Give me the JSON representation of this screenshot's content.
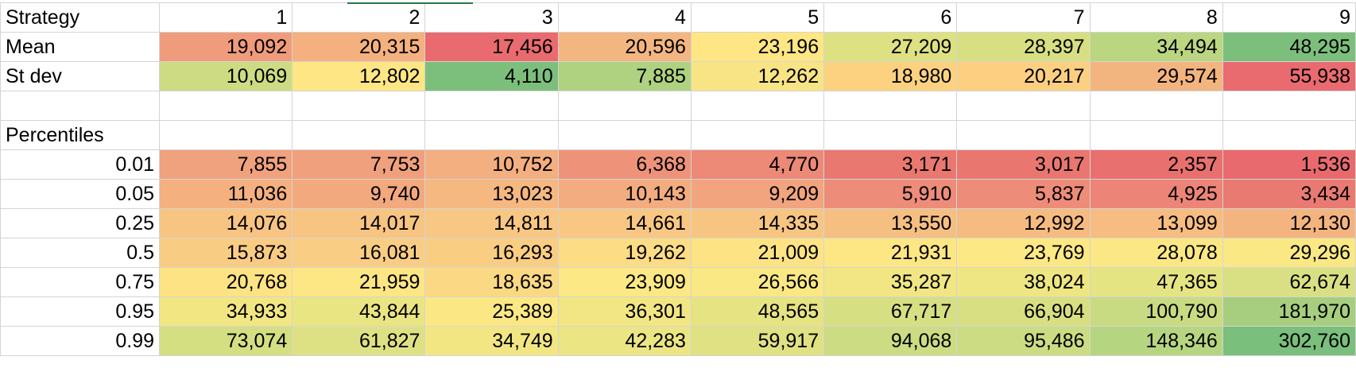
{
  "header": {
    "label": "Strategy",
    "columns": [
      "1",
      "2",
      "3",
      "4",
      "5",
      "6",
      "7",
      "8",
      "9"
    ]
  },
  "stats": [
    {
      "label": "Mean",
      "values": [
        "19,092",
        "20,315",
        "17,456",
        "20,596",
        "23,196",
        "27,209",
        "28,397",
        "34,494",
        "48,295"
      ],
      "colors": [
        "#f09c7c",
        "#f4b07f",
        "#e96b6f",
        "#f4b681",
        "#fde683",
        "#dee182",
        "#d7df82",
        "#bbd680",
        "#7cbf7c"
      ]
    },
    {
      "label": "St dev",
      "values": [
        "10,069",
        "12,802",
        "4,110",
        "7,885",
        "12,262",
        "18,980",
        "20,217",
        "29,574",
        "55,938"
      ],
      "colors": [
        "#cddc82",
        "#fde683",
        "#7cbf7c",
        "#aed27f",
        "#f8e484",
        "#fcd281",
        "#fcd080",
        "#f3b57f",
        "#e96b6f"
      ]
    }
  ],
  "percentiles": {
    "label": "Percentiles",
    "rows": [
      {
        "label": "0.01",
        "values": [
          "7,855",
          "7,753",
          "10,752",
          "6,368",
          "4,770",
          "3,171",
          "3,017",
          "2,357",
          "1,536"
        ],
        "colors": [
          "#f0a17d",
          "#f0a07d",
          "#f3af80",
          "#ee937a",
          "#ec8977",
          "#e97871",
          "#e97770",
          "#e8716f",
          "#e86a6e"
        ]
      },
      {
        "label": "0.05",
        "values": [
          "11,036",
          "9,740",
          "13,023",
          "10,143",
          "9,209",
          "5,910",
          "5,837",
          "4,925",
          "3,434"
        ],
        "colors": [
          "#f4b07f",
          "#f2a97e",
          "#f5b881",
          "#f3ac7f",
          "#f1a47e",
          "#ed8c78",
          "#ed8c78",
          "#ec8477",
          "#e97a72"
        ]
      },
      {
        "label": "0.25",
        "values": [
          "14,076",
          "14,017",
          "14,811",
          "14,661",
          "14,335",
          "13,550",
          "12,992",
          "13,099",
          "12,130"
        ],
        "colors": [
          "#f7c482",
          "#f7c482",
          "#f8c783",
          "#f8c783",
          "#f7c582",
          "#f6bf82",
          "#f5bb81",
          "#f6bc81",
          "#f4b480"
        ]
      },
      {
        "label": "0.5",
        "values": [
          "15,873",
          "16,081",
          "16,293",
          "19,262",
          "21,009",
          "21,931",
          "23,769",
          "28,078",
          "29,296"
        ],
        "colors": [
          "#f9cc83",
          "#f9cd83",
          "#f9ce83",
          "#fcdc84",
          "#fde384",
          "#fde684",
          "#fce884",
          "#fbe884",
          "#fae884"
        ]
      },
      {
        "label": "0.75",
        "values": [
          "20,768",
          "21,959",
          "18,635",
          "23,909",
          "26,566",
          "35,287",
          "38,024",
          "47,365",
          "62,674"
        ],
        "colors": [
          "#fde383",
          "#fde684",
          "#fbd984",
          "#fce884",
          "#fae884",
          "#f1e683",
          "#eee683",
          "#e5e483",
          "#d9e083"
        ]
      },
      {
        "label": "0.95",
        "values": [
          "34,933",
          "43,844",
          "25,389",
          "36,301",
          "48,565",
          "67,717",
          "66,904",
          "100,790",
          "181,970"
        ],
        "colors": [
          "#f2e683",
          "#eae583",
          "#fbe884",
          "#f1e683",
          "#e6e383",
          "#d6df82",
          "#d7df82",
          "#c9db82",
          "#a7ce7f"
        ]
      },
      {
        "label": "0.99",
        "values": [
          "73,074",
          "61,827",
          "34,749",
          "42,283",
          "59,917",
          "94,068",
          "95,486",
          "148,346",
          "302,760"
        ],
        "colors": [
          "#d4df82",
          "#dee183",
          "#f2e683",
          "#ebe583",
          "#e0e183",
          "#ccdc82",
          "#cbdc82",
          "#b6d581",
          "#7abf7c"
        ]
      }
    ]
  }
}
